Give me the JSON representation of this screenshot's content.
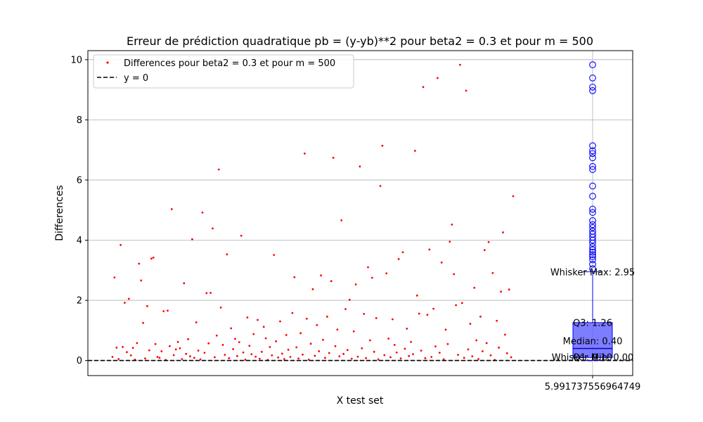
{
  "chart_data": {
    "type": "scatter",
    "title": "Erreur de prédiction quadratique pb = (y-yb)**2 pour beta2 = 0.3 et pour m = 500",
    "xlabel": "X test set",
    "ylabel": "Differences",
    "ylim": [
      -0.5,
      10.3
    ],
    "y_ticks": [
      0,
      2,
      4,
      6,
      8,
      10
    ],
    "x_tick_label": "5.991737556964749",
    "grid": "y, plus vertical line at boxplot position",
    "legend": {
      "placement": "top-left",
      "entries": [
        {
          "label": "Differences pour beta2 = 0.3 et pour m = 500",
          "marker": "red-dot"
        },
        {
          "label": "y = 0",
          "marker": "black-dashed-line"
        }
      ]
    },
    "series": [
      {
        "name": "Differences pour beta2 = 0.3 et pour m = 500",
        "color": "#ff0000",
        "values": [
          0.12,
          2.76,
          0.43,
          0.05,
          3.84,
          0.45,
          1.92,
          0.28,
          2.05,
          0.17,
          0.42,
          0.03,
          0.58,
          3.22,
          2.66,
          1.25,
          0.07,
          1.81,
          0.34,
          3.39,
          3.42,
          0.55,
          0.12,
          0.09,
          0.31,
          1.64,
          0.02,
          1.66,
          0.48,
          5.03,
          0.18,
          0.37,
          0.62,
          0.41,
          0.05,
          2.57,
          0.22,
          0.71,
          0.14,
          4.03,
          0.09,
          1.27,
          0.33,
          0.04,
          4.92,
          0.26,
          2.24,
          0.57,
          2.25,
          4.39,
          0.11,
          0.83,
          6.35,
          1.76,
          0.52,
          0.19,
          3.53,
          0.08,
          1.07,
          0.38,
          0.72,
          0.15,
          0.61,
          4.15,
          0.27,
          0.03,
          1.43,
          0.49,
          0.21,
          0.88,
          0.13,
          1.35,
          0.06,
          0.29,
          1.12,
          0.74,
          0.02,
          0.45,
          0.17,
          3.51,
          0.64,
          0.1,
          1.3,
          0.23,
          0.05,
          0.85,
          0.36,
          0.12,
          1.58,
          2.77,
          0.44,
          0.07,
          0.91,
          0.2,
          6.88,
          1.39,
          0.03,
          0.56,
          2.37,
          0.16,
          1.18,
          0.31,
          2.83,
          0.69,
          0.09,
          1.46,
          0.25,
          2.64,
          6.74,
          0.48,
          1.03,
          0.14,
          4.66,
          0.22,
          1.71,
          0.35,
          2.02,
          0.06,
          0.97,
          2.53,
          0.13,
          6.45,
          0.41,
          1.55,
          0.08,
          3.1,
          0.67,
          2.75,
          0.29,
          1.41,
          0.04,
          5.8,
          7.14,
          0.18,
          2.9,
          0.73,
          0.11,
          1.37,
          0.52,
          0.27,
          3.37,
          0.07,
          3.6,
          0.39,
          1.06,
          0.15,
          0.62,
          0.21,
          6.97,
          2.16,
          1.56,
          0.33,
          9.09,
          0.08,
          1.52,
          3.69,
          0.12,
          1.72,
          0.47,
          9.39,
          0.26,
          3.26,
          0.04,
          1.03,
          0.55,
          3.95,
          4.52,
          2.87,
          1.84,
          0.19,
          9.83,
          1.91,
          0.09,
          8.97,
          0.37,
          1.22,
          0.14,
          2.42,
          0.67,
          0.05,
          1.46,
          0.31,
          3.67,
          0.58,
          3.94,
          0.17,
          2.91,
          0.02,
          1.32,
          0.43,
          2.29,
          4.26,
          0.86,
          0.24,
          2.36,
          0.11,
          5.46
        ],
        "note": "approximate sample of the ~500 plotted red points"
      }
    ],
    "boxplot": {
      "position_label": "5.991737556964749",
      "q1": 0.1,
      "median": 0.4,
      "q3": 1.26,
      "whisker_min": 0.0,
      "whisker_max": 2.95,
      "outliers": [
        3.05,
        3.2,
        3.35,
        3.45,
        3.52,
        3.6,
        3.68,
        3.78,
        3.9,
        4.0,
        4.1,
        4.2,
        4.3,
        4.42,
        4.52,
        4.65,
        4.92,
        5.03,
        5.46,
        5.8,
        6.35,
        6.45,
        6.74,
        6.88,
        6.97,
        7.14,
        8.97,
        9.09,
        9.39,
        9.83
      ],
      "labels": {
        "whisker_max": "Whisker Max: 2.95",
        "q3": "Q3: 1.26",
        "median": "Median: 0.40",
        "q1": "Q1: 0.10",
        "whisker_min": "Whisker Min: 0.00"
      },
      "fill_color": "#6666ff",
      "edge_color": "#0000ff"
    },
    "reference_line": {
      "y": 0,
      "label": "y = 0",
      "color": "#000000",
      "style": "dashed"
    }
  }
}
